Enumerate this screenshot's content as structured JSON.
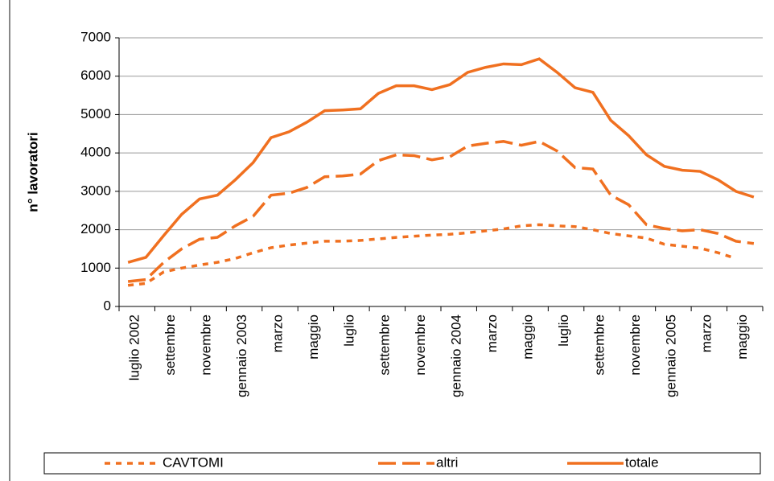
{
  "chart_data": {
    "type": "line",
    "y_label": "n° lavoratori",
    "categories": [
      "luglio 2002",
      null,
      "settembre",
      null,
      "novembre",
      null,
      "gennaio 2003",
      null,
      "marzo",
      null,
      "maggio",
      null,
      "luglio",
      null,
      "settembre",
      null,
      "novembre",
      null,
      "gennaio 2004",
      null,
      "marzo",
      null,
      "maggio",
      null,
      "luglio",
      null,
      "settembre",
      null,
      "novembre",
      null,
      "gennaio 2005",
      null,
      "marzo",
      null,
      "maggio",
      null
    ],
    "series": [
      {
        "name": "CAVTOMI",
        "color": "#f07020",
        "dash": "dotted",
        "values": [
          550,
          600,
          900,
          1000,
          1080,
          1150,
          1250,
          1400,
          1530,
          1600,
          1650,
          1700,
          1700,
          1720,
          1760,
          1800,
          1830,
          1860,
          1880,
          1920,
          1970,
          2020,
          2100,
          2130,
          2100,
          2080,
          2000,
          1900,
          1840,
          1780,
          1620,
          1570,
          1520,
          1400,
          1250,
          null
        ]
      },
      {
        "name": "altri",
        "color": "#f07020",
        "dash": "dashed",
        "values": [
          650,
          700,
          1150,
          1500,
          1750,
          1800,
          2100,
          2350,
          2900,
          2950,
          3100,
          3380,
          3400,
          3450,
          3800,
          3950,
          3930,
          3820,
          3900,
          4180,
          4250,
          4300,
          4200,
          4300,
          4050,
          3620,
          3580,
          2900,
          2650,
          2130,
          2030,
          1970,
          2000,
          1900,
          1700,
          1640
        ]
      },
      {
        "name": "totale",
        "color": "#f07020",
        "dash": "solid",
        "values": [
          1150,
          1280,
          1850,
          2400,
          2800,
          2900,
          3300,
          3750,
          4400,
          4550,
          4800,
          5100,
          5120,
          5150,
          5550,
          5750,
          5750,
          5650,
          5780,
          6100,
          6230,
          6320,
          6300,
          6450,
          6100,
          5700,
          5580,
          4850,
          4450,
          3950,
          3650,
          3550,
          3520,
          3300,
          3000,
          2850
        ]
      }
    ],
    "ylim": [
      0,
      7000
    ],
    "yticks": [
      0,
      1000,
      2000,
      3000,
      4000,
      5000,
      6000,
      7000
    ],
    "grid": true,
    "legend": "bottom"
  }
}
